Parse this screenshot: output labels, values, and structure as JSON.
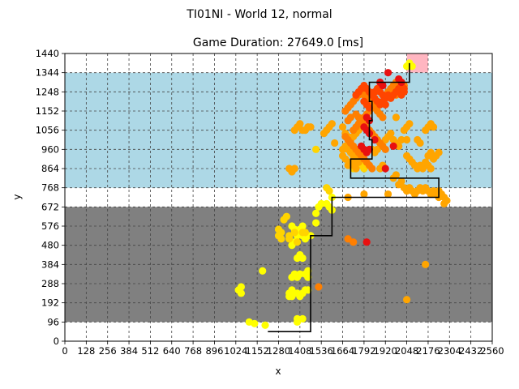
{
  "chart_data": {
    "type": "scatter",
    "suptitle": "TI01NI - World 12, normal",
    "title": "Game Duration: 27649.0 [ms]",
    "xlabel": "x",
    "ylabel": "y",
    "xlim": [
      0,
      2560
    ],
    "ylim": [
      0,
      1440
    ],
    "grid": true,
    "legend": "none",
    "x_ticks": [
      0,
      128,
      256,
      384,
      512,
      640,
      768,
      896,
      1024,
      1152,
      1280,
      1408,
      1536,
      1664,
      1792,
      1920,
      2048,
      2176,
      2304,
      2432,
      2560
    ],
    "y_ticks": [
      0,
      96,
      192,
      288,
      384,
      480,
      576,
      672,
      768,
      864,
      960,
      1056,
      1152,
      1248,
      1344,
      1440
    ],
    "regions": [
      {
        "name": "gray-zone",
        "x": [
          0,
          2560
        ],
        "y": [
          96,
          672
        ],
        "color": "#808080"
      },
      {
        "name": "blue-zone",
        "x": [
          0,
          2560
        ],
        "y": [
          768,
          1344
        ],
        "color": "#add8e6"
      },
      {
        "name": "goal-zone",
        "x": [
          2048,
          2176
        ],
        "y": [
          1344,
          1440
        ],
        "color": "#ffb6c1"
      }
    ],
    "path": {
      "color": "#000000",
      "points": [
        [
          1216,
          48
        ],
        [
          1472,
          48
        ],
        [
          1472,
          528
        ],
        [
          1600,
          528
        ],
        [
          1600,
          720
        ],
        [
          2240,
          720
        ],
        [
          2240,
          816
        ],
        [
          1712,
          816
        ],
        [
          1712,
          912
        ],
        [
          1840,
          912
        ],
        [
          1840,
          1008
        ],
        [
          1824,
          1008
        ],
        [
          1824,
          1104
        ],
        [
          1840,
          1104
        ],
        [
          1840,
          1200
        ],
        [
          1824,
          1200
        ],
        [
          1824,
          1296
        ],
        [
          2064,
          1296
        ],
        [
          2064,
          1392
        ]
      ]
    },
    "colors": {
      "yellow": "#ffff00",
      "gold": "#ffd400",
      "orange": "#ffa500",
      "dark_orange": "#ff7f00",
      "red_orange": "#ff4500",
      "red": "#e81010"
    },
    "series": [
      {
        "color": "yellow",
        "points": [
          [
            1056,
            240
          ],
          [
            1040,
            256
          ],
          [
            1056,
            272
          ],
          [
            1104,
            96
          ],
          [
            1136,
            88
          ],
          [
            1200,
            80
          ],
          [
            1184,
            352
          ],
          [
            1344,
            224
          ],
          [
            1360,
            224
          ],
          [
            1344,
            240
          ],
          [
            1360,
            256
          ],
          [
            1392,
            240
          ],
          [
            1408,
            224
          ],
          [
            1424,
            240
          ],
          [
            1440,
            256
          ],
          [
            1456,
            256
          ],
          [
            1360,
            320
          ],
          [
            1376,
            336
          ],
          [
            1392,
            320
          ],
          [
            1408,
            336
          ],
          [
            1440,
            336
          ],
          [
            1456,
            320
          ],
          [
            1456,
            352
          ],
          [
            1392,
            416
          ],
          [
            1408,
            432
          ],
          [
            1424,
            416
          ],
          [
            1360,
            480
          ],
          [
            1376,
            496
          ],
          [
            1392,
            528
          ],
          [
            1408,
            544
          ],
          [
            1424,
            528
          ],
          [
            1440,
            512
          ],
          [
            1472,
            528
          ],
          [
            1360,
            576
          ],
          [
            1376,
            560
          ],
          [
            1392,
            544
          ],
          [
            1408,
            560
          ],
          [
            1424,
            576
          ],
          [
            1504,
            592
          ],
          [
            1504,
            640
          ],
          [
            1520,
            672
          ],
          [
            1536,
            688
          ],
          [
            1568,
            688
          ],
          [
            1584,
            672
          ],
          [
            1600,
            656
          ],
          [
            1600,
            720
          ],
          [
            1392,
            96
          ],
          [
            1392,
            112
          ],
          [
            1424,
            112
          ],
          [
            2048,
            1376
          ],
          [
            2080,
            1376
          ],
          [
            2064,
            1392
          ]
        ]
      },
      {
        "color": "gold",
        "points": [
          [
            1280,
            560
          ],
          [
            1296,
            544
          ],
          [
            1312,
            608
          ],
          [
            1328,
            624
          ],
          [
            1280,
            528
          ],
          [
            1296,
            512
          ],
          [
            1344,
            512
          ],
          [
            1376,
            544
          ],
          [
            1344,
            528
          ],
          [
            1424,
            544
          ],
          [
            1392,
            496
          ],
          [
            1440,
            544
          ],
          [
            1568,
            768
          ],
          [
            1584,
            752
          ],
          [
            1504,
            960
          ],
          [
            1728,
            864
          ],
          [
            1744,
            880
          ],
          [
            1760,
            896
          ],
          [
            1776,
            880
          ],
          [
            1792,
            864
          ]
        ]
      },
      {
        "color": "orange",
        "points": [
          [
            1344,
            864
          ],
          [
            1360,
            848
          ],
          [
            1376,
            864
          ],
          [
            1440,
            1056
          ],
          [
            1456,
            1072
          ],
          [
            1472,
            1072
          ],
          [
            1376,
            1056
          ],
          [
            1392,
            1072
          ],
          [
            1408,
            1088
          ],
          [
            1424,
            1056
          ],
          [
            1552,
            1040
          ],
          [
            1568,
            1056
          ],
          [
            1584,
            1072
          ],
          [
            1600,
            1088
          ],
          [
            1616,
            992
          ],
          [
            1664,
            1072
          ],
          [
            1680,
            1040
          ],
          [
            1696,
            1024
          ],
          [
            1712,
            1008
          ],
          [
            1728,
            1024
          ],
          [
            1744,
            1040
          ],
          [
            1760,
            1056
          ],
          [
            1776,
            1072
          ],
          [
            1792,
            1088
          ],
          [
            1664,
            960
          ],
          [
            1680,
            976
          ],
          [
            1696,
            960
          ],
          [
            1712,
            944
          ],
          [
            1728,
            928
          ],
          [
            1744,
            912
          ],
          [
            1760,
            896
          ],
          [
            1664,
            928
          ],
          [
            1680,
            912
          ],
          [
            1696,
            880
          ],
          [
            1712,
            896
          ],
          [
            1728,
            880
          ],
          [
            1744,
            864
          ],
          [
            1840,
            960
          ],
          [
            1856,
            944
          ],
          [
            1872,
            960
          ],
          [
            1888,
            864
          ],
          [
            1904,
            880
          ],
          [
            1920,
            1008
          ],
          [
            1936,
            1024
          ],
          [
            1952,
            1040
          ],
          [
            1968,
            1008
          ],
          [
            1984,
            992
          ],
          [
            2000,
            976
          ],
          [
            2016,
            1008
          ],
          [
            2032,
            1056
          ],
          [
            2048,
            1072
          ],
          [
            2064,
            1088
          ],
          [
            2048,
            1008
          ],
          [
            2048,
            928
          ],
          [
            2064,
            912
          ],
          [
            2080,
            896
          ],
          [
            2096,
            880
          ],
          [
            2112,
            864
          ],
          [
            2128,
            880
          ],
          [
            2144,
            864
          ],
          [
            2160,
            896
          ],
          [
            2176,
            880
          ],
          [
            2192,
            864
          ],
          [
            2176,
            928
          ],
          [
            2192,
            944
          ],
          [
            2208,
            912
          ],
          [
            2224,
            928
          ],
          [
            2240,
            944
          ],
          [
            2160,
            1056
          ],
          [
            2176,
            1072
          ],
          [
            2192,
            1088
          ],
          [
            2208,
            1072
          ],
          [
            2064,
            768
          ],
          [
            2080,
            752
          ],
          [
            2096,
            736
          ],
          [
            2112,
            752
          ],
          [
            2128,
            768
          ],
          [
            2144,
            752
          ],
          [
            2160,
            768
          ],
          [
            2176,
            752
          ],
          [
            2192,
            736
          ],
          [
            2208,
            752
          ],
          [
            2224,
            736
          ],
          [
            2240,
            752
          ],
          [
            2256,
            736
          ],
          [
            2272,
            720
          ],
          [
            2288,
            704
          ],
          [
            2272,
            688
          ],
          [
            2240,
            720
          ],
          [
            1968,
            816
          ],
          [
            1984,
            832
          ],
          [
            2000,
            784
          ],
          [
            2016,
            800
          ],
          [
            2032,
            768
          ],
          [
            2048,
            752
          ],
          [
            2112,
            1008
          ],
          [
            2128,
            992
          ],
          [
            1696,
            720
          ],
          [
            1792,
            736
          ],
          [
            2048,
            208
          ],
          [
            2160,
            384
          ],
          [
            1936,
            736
          ],
          [
            1984,
            1120
          ]
        ]
      },
      {
        "color": "dark_orange",
        "points": [
          [
            1520,
            272
          ],
          [
            1696,
            512
          ],
          [
            1728,
            496
          ],
          [
            1680,
            1152
          ],
          [
            1696,
            1168
          ],
          [
            1712,
            1184
          ],
          [
            1728,
            1200
          ],
          [
            1744,
            1216
          ],
          [
            1760,
            1232
          ],
          [
            1776,
            1248
          ],
          [
            1792,
            1232
          ],
          [
            1808,
            1216
          ],
          [
            1824,
            1200
          ],
          [
            1840,
            1184
          ],
          [
            1856,
            1168
          ],
          [
            1872,
            1152
          ],
          [
            1888,
            1136
          ],
          [
            1904,
            1120
          ],
          [
            1760,
            1120
          ],
          [
            1776,
            1104
          ],
          [
            1792,
            1088
          ],
          [
            1808,
            1072
          ],
          [
            1824,
            1056
          ],
          [
            1840,
            1040
          ],
          [
            1856,
            1024
          ],
          [
            1872,
            1008
          ],
          [
            1888,
            992
          ],
          [
            1904,
            976
          ],
          [
            1920,
            960
          ],
          [
            1680,
            1024
          ],
          [
            1696,
            1008
          ],
          [
            1712,
            992
          ],
          [
            1728,
            976
          ],
          [
            1744,
            960
          ],
          [
            1760,
            944
          ],
          [
            1776,
            928
          ],
          [
            1792,
            912
          ],
          [
            1808,
            896
          ],
          [
            1824,
            880
          ],
          [
            1840,
            864
          ],
          [
            1728,
            1056
          ],
          [
            1744,
            1072
          ],
          [
            1760,
            1088
          ],
          [
            1776,
            1104
          ],
          [
            1792,
            1120
          ],
          [
            1808,
            1136
          ],
          [
            1824,
            1152
          ],
          [
            1840,
            1168
          ],
          [
            1856,
            1184
          ],
          [
            1872,
            1200
          ],
          [
            1696,
            1104
          ],
          [
            1712,
            1120
          ],
          [
            1744,
            1136
          ],
          [
            1920,
            1232
          ],
          [
            1936,
            1248
          ],
          [
            1952,
            1264
          ],
          [
            1968,
            1280
          ],
          [
            1984,
            1296
          ],
          [
            2000,
            1312
          ],
          [
            2016,
            1296
          ],
          [
            2032,
            1280
          ],
          [
            2000,
            1248
          ],
          [
            1984,
            1232
          ]
        ]
      },
      {
        "color": "red_orange",
        "points": [
          [
            1776,
            1264
          ],
          [
            1792,
            1280
          ],
          [
            1808,
            1264
          ],
          [
            1824,
            1248
          ],
          [
            1840,
            1232
          ],
          [
            1856,
            1248
          ],
          [
            1872,
            1264
          ],
          [
            1888,
            1248
          ],
          [
            1904,
            1232
          ],
          [
            1920,
            1216
          ],
          [
            1936,
            1232
          ],
          [
            1952,
            1216
          ],
          [
            1968,
            1232
          ],
          [
            1984,
            1248
          ],
          [
            2000,
            1264
          ],
          [
            2016,
            1280
          ],
          [
            2032,
            1264
          ],
          [
            1856,
            1216
          ],
          [
            1872,
            1200
          ],
          [
            1888,
            1184
          ],
          [
            1904,
            1200
          ],
          [
            1920,
            1184
          ],
          [
            1808,
            1184
          ],
          [
            1824,
            1168
          ],
          [
            1792,
            1200
          ],
          [
            1760,
            1248
          ],
          [
            1744,
            1232
          ],
          [
            2016,
            1232
          ],
          [
            2032,
            1248
          ]
        ]
      },
      {
        "color": "red",
        "points": [
          [
            1808,
            1120
          ],
          [
            1824,
            1104
          ],
          [
            1792,
            1072
          ],
          [
            1808,
            1056
          ],
          [
            1824,
            1040
          ],
          [
            1856,
            1008
          ],
          [
            1776,
            976
          ],
          [
            1792,
            960
          ],
          [
            1808,
            944
          ],
          [
            1824,
            960
          ],
          [
            1936,
            1344
          ],
          [
            2000,
            1312
          ],
          [
            2016,
            1296
          ],
          [
            1968,
            976
          ],
          [
            1920,
            864
          ],
          [
            1808,
            496
          ],
          [
            1888,
            1296
          ],
          [
            1904,
            1280
          ]
        ]
      }
    ]
  }
}
